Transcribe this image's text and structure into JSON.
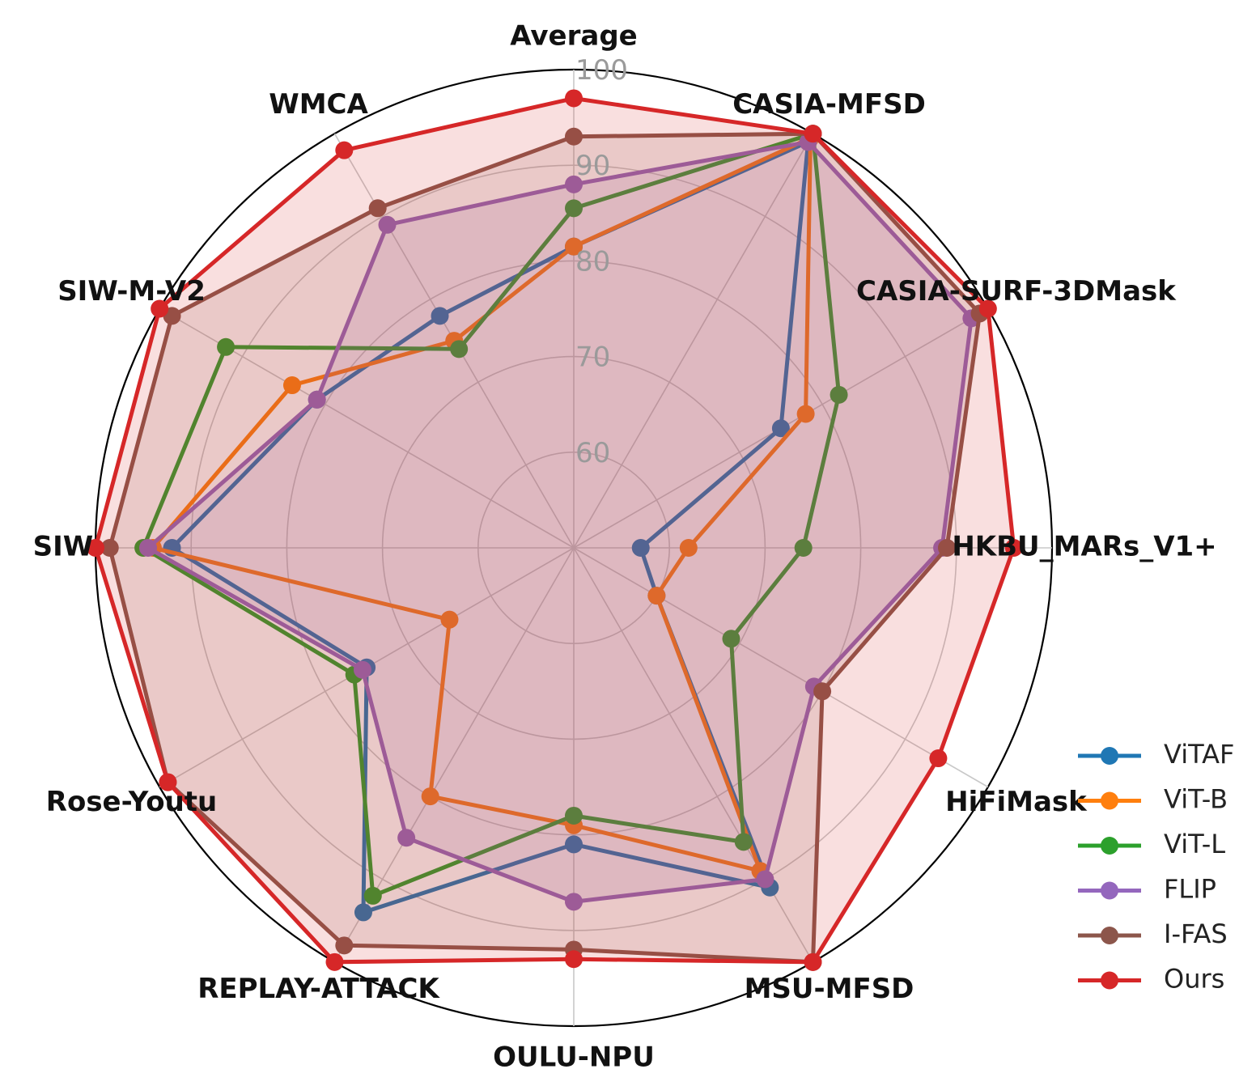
{
  "chart_data": {
    "type": "radar",
    "categories": [
      "Average",
      "CASIA-MFSD",
      "CASIA-SURF-3DMask",
      "HKBU_MARs_V1+",
      "HiFiMask",
      "MSU-MFSD",
      "OULU-NPU",
      "REPLAY-ATTACK",
      "Rose-Youtu",
      "SIW",
      "SIW-M-V2",
      "WMCA"
    ],
    "r_ticks": [
      60,
      70,
      80,
      90,
      100
    ],
    "r_range": [
      50,
      100
    ],
    "grid": true,
    "legend_position": "lower-right",
    "series": [
      {
        "name": "ViTAF",
        "color": "#1f77b4",
        "fill": false,
        "values": [
          81.5,
          99.0,
          75.0,
          57.0,
          60.0,
          91.0,
          81.0,
          94.0,
          75.0,
          92.0,
          81.0,
          78.0
        ]
      },
      {
        "name": "ViT-B",
        "color": "#ff7f0e",
        "fill": false,
        "values": [
          81.5,
          99.5,
          78.0,
          62.0,
          60.0,
          89.0,
          79.0,
          80.0,
          65.0,
          94.0,
          84.0,
          75.0
        ]
      },
      {
        "name": "ViT-L",
        "color": "#2ca02c",
        "fill": false,
        "values": [
          85.5,
          100.0,
          82.0,
          74.0,
          69.0,
          85.5,
          78.0,
          92.0,
          76.5,
          95.0,
          92.0,
          74.0
        ]
      },
      {
        "name": "FLIP",
        "color": "#9467bd",
        "fill": true,
        "values": [
          88.0,
          99.0,
          98.0,
          88.5,
          79.0,
          90.0,
          87.0,
          85.0,
          75.5,
          94.5,
          81.0,
          89.0
        ]
      },
      {
        "name": "I-FAS",
        "color": "#8c564b",
        "fill": true,
        "values": [
          93.0,
          100.0,
          99.0,
          89.0,
          80.0,
          100.0,
          92.0,
          98.0,
          99.0,
          98.5,
          98.5,
          91.0
        ]
      },
      {
        "name": "Ours",
        "color": "#d62728",
        "fill": true,
        "values": [
          97.0,
          100.0,
          100.0,
          96.0,
          94.0,
          100.0,
          93.0,
          100.0,
          99.0,
          100.0,
          100.0,
          98.0
        ]
      }
    ]
  }
}
